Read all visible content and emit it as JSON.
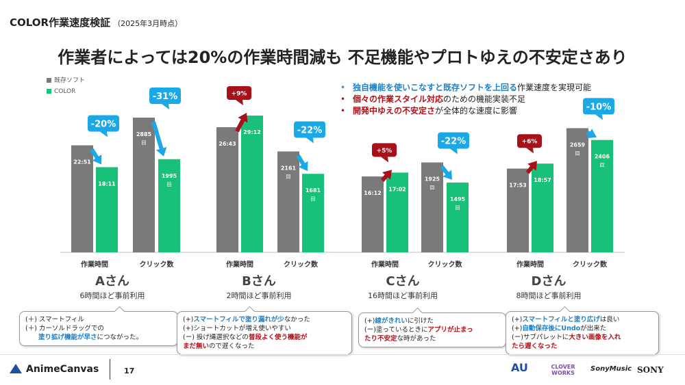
{
  "header": {
    "title": "COLOR作業速度検証",
    "subtitle": "（2025年3月時点）"
  },
  "headline": "作業者によっては20%の作業時間減も 不足機能やプロトゆえの不安定さあり",
  "legend": {
    "existing": "既存ソフト",
    "color": "COLOR"
  },
  "colors": {
    "existing": "#7a7a7a",
    "color": "#19c07a",
    "reduction": "#1aa9e6",
    "increase": "#a8101a"
  },
  "bullets": [
    {
      "hl": "独自機能を使いこなすと既存ソフトを上回る",
      "rest": "作業速度を実現可能",
      "style": "blue"
    },
    {
      "hl": "個々の作業スタイル対応",
      "rest": "のための機能実装不足",
      "style": "red"
    },
    {
      "hl": "開発中ゆえの不安定さ",
      "rest": "が全体的な速度に影響",
      "style": "red"
    }
  ],
  "chart_data": {
    "type": "bar",
    "series": [
      {
        "name": "既存ソフト"
      },
      {
        "name": "COLOR"
      }
    ],
    "people": [
      {
        "name": "Aさん",
        "usage": "6時間ほど事前利用",
        "time": {
          "label": "作業時間",
          "existing": "22:51",
          "color": "18:11",
          "existing_min": 22.85,
          "color_min": 18.18,
          "change": "-20%"
        },
        "clicks": {
          "label": "クリック数",
          "existing": 2885,
          "color": 1995,
          "unit": "回",
          "change": "-31%"
        }
      },
      {
        "name": "Bさん",
        "usage": "2時間ほど事前利用",
        "time": {
          "label": "作業時間",
          "existing": "26:43",
          "color": "29:12",
          "existing_min": 26.72,
          "color_min": 29.2,
          "change": "+9%"
        },
        "clicks": {
          "label": "クリック数",
          "existing": 2161,
          "color": 1681,
          "unit": "回",
          "change": "-22%"
        }
      },
      {
        "name": "Cさん",
        "usage": "16時間ほど事前利用",
        "time": {
          "label": "作業時間",
          "existing": "16:12",
          "color": "17:02",
          "existing_min": 16.2,
          "color_min": 17.03,
          "change": "+5%"
        },
        "clicks": {
          "label": "クリック数",
          "existing": 1925,
          "color": 1495,
          "unit": "回",
          "change": "-22%"
        }
      },
      {
        "name": "Dさん",
        "usage": "8時間ほど事前利用",
        "time": {
          "label": "作業時間",
          "existing": "17:53",
          "color": "18:57",
          "existing_min": 17.88,
          "color_min": 18.95,
          "change": "+6%"
        },
        "clicks": {
          "label": "クリック数",
          "existing": 2659,
          "color": 2406,
          "unit": "回",
          "change": "-10%"
        }
      }
    ]
  },
  "callouts": [
    {
      "lines": [
        [
          {
            "t": "(＋) スマートフィル"
          }
        ],
        [
          {
            "t": "(＋) カーソルドラッグでの"
          }
        ],
        [
          {
            "t": "　　"
          },
          {
            "t": "塗り拡げ機能が早さ",
            "s": "blue"
          },
          {
            "t": "につながった。"
          }
        ]
      ]
    },
    {
      "lines": [
        [
          {
            "t": "(+)"
          },
          {
            "t": "スマートフィルで塗り漏れが少",
            "s": "blue"
          },
          {
            "t": "なかった"
          }
        ],
        [
          {
            "t": "(+)ショートカットが増え使いやすい"
          }
        ],
        [
          {
            "t": "(ー) 投げ縄選択などの"
          },
          {
            "t": "普段よく使う機能が",
            "s": "red"
          }
        ],
        [
          {
            "t": "まだ無い",
            "s": "red"
          },
          {
            "t": "ので遅くなった"
          }
        ]
      ]
    },
    {
      "lines": [
        [
          {
            "t": "(+)"
          },
          {
            "t": "線がきれい",
            "s": "blue"
          },
          {
            "t": "に引けた"
          }
        ],
        [
          {
            "t": "(ー)塗っているときに"
          },
          {
            "t": "アプリが止まっ",
            "s": "red"
          }
        ],
        [
          {
            "t": "たり不安定",
            "s": "red"
          },
          {
            "t": "な時があった"
          }
        ]
      ]
    },
    {
      "lines": [
        [
          {
            "t": "(+)"
          },
          {
            "t": "スマートフィルと塗り広げ",
            "s": "blue"
          },
          {
            "t": "は良い"
          }
        ],
        [
          {
            "t": "(+)"
          },
          {
            "t": "自動保存後にUndo",
            "s": "blue"
          },
          {
            "t": "が出来た"
          }
        ],
        [
          {
            "t": "(ー)サブパレットに"
          },
          {
            "t": "大きい画像を入れ",
            "s": "red"
          }
        ],
        [
          {
            "t": "たら遅くなった",
            "s": "red"
          }
        ]
      ]
    }
  ],
  "footer": {
    "brand": "AnimeCanvas",
    "page": "17",
    "partners": [
      "AU",
      "CLOVER WORKS",
      "SonyMusic",
      "SONY"
    ]
  }
}
